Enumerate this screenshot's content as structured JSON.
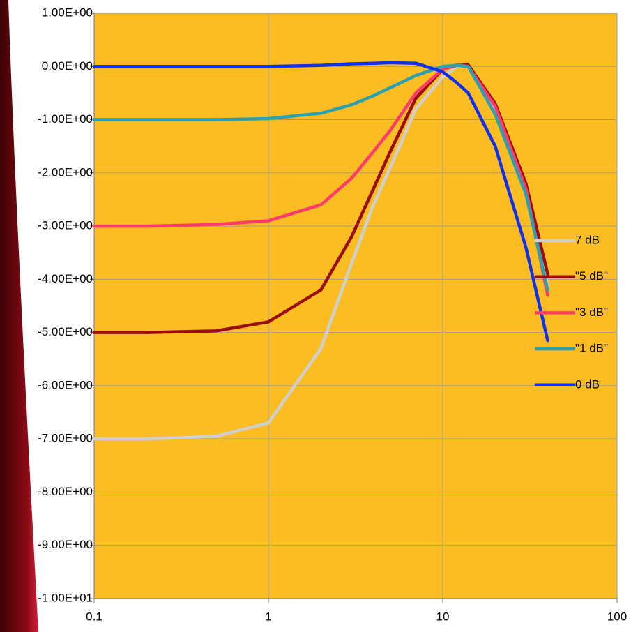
{
  "chart_data": {
    "type": "line",
    "x": [
      0.1,
      0.2,
      0.5,
      1,
      2,
      3,
      4,
      5,
      7,
      10,
      12,
      14,
      20,
      30,
      40
    ],
    "series": [
      {
        "name": "7 dB",
        "color": "#cfcfcf",
        "values": [
          -7,
          -7,
          -6.95,
          -6.7,
          -5.3,
          -3.7,
          -2.6,
          -1.9,
          -0.8,
          -0.2,
          0,
          0.02,
          -0.85,
          -2.4,
          -4.1
        ]
      },
      {
        "name": "\"5 dB\"",
        "color": "#9b0d0a",
        "values": [
          -5,
          -5,
          -4.97,
          -4.8,
          -4.2,
          -3.2,
          -2.3,
          -1.6,
          -0.6,
          -0.05,
          0.02,
          0.03,
          -0.7,
          -2.2,
          -3.9
        ]
      },
      {
        "name": "\"3 dB\"",
        "color": "#ff3b6b",
        "values": [
          -3,
          -3,
          -2.97,
          -2.9,
          -2.6,
          -2.1,
          -1.6,
          -1.2,
          -0.5,
          -0.05,
          0.03,
          0,
          -0.75,
          -2.3,
          -4.3
        ]
      },
      {
        "name": "\"1 dB\"",
        "color": "#2aa0b0",
        "values": [
          -1,
          -1,
          -1,
          -0.98,
          -0.88,
          -0.72,
          -0.55,
          -0.4,
          -0.17,
          0,
          0.02,
          0,
          -0.9,
          -2.4,
          -4.2
        ]
      },
      {
        "name": "0 dB",
        "color": "#1030f0",
        "values": [
          0,
          0,
          0,
          0,
          0.02,
          0.05,
          0.06,
          0.07,
          0.06,
          -0.1,
          -0.3,
          -0.5,
          -1.5,
          -3.4,
          -5.15
        ]
      }
    ],
    "xlim": [
      0.1,
      100
    ],
    "xticks": [
      0.1,
      1,
      10,
      100
    ],
    "xscale": "log",
    "ylim": [
      -10,
      1
    ],
    "yticks": [
      {
        "value": 1,
        "label": "1.00E+00"
      },
      {
        "value": 0,
        "label": "0.00E+00"
      },
      {
        "value": -1,
        "label": "-1.00E+00"
      },
      {
        "value": -2,
        "label": "-2.00E+00"
      },
      {
        "value": -3,
        "label": "-3.00E+00"
      },
      {
        "value": -4,
        "label": "-4.00E+00"
      },
      {
        "value": -5,
        "label": "-5.00E+00"
      },
      {
        "value": -6,
        "label": "-6.00E+00"
      },
      {
        "value": -7,
        "label": "-7.00E+00"
      },
      {
        "value": -8,
        "label": "-8.00E+00"
      },
      {
        "value": -9,
        "label": "-9.00E+00"
      },
      {
        "value": -10,
        "label": "-1.00E+01"
      }
    ],
    "grid": true,
    "legend": "right",
    "background": "#fbbd22"
  }
}
